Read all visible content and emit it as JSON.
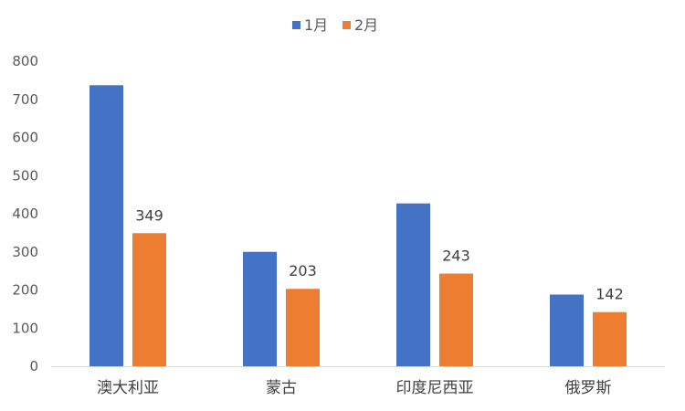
{
  "chart_data": {
    "type": "bar",
    "title": "",
    "xlabel": "",
    "ylabel": "",
    "categories": [
      "澳大利亚",
      "蒙古",
      "印度尼西亚",
      "俄罗斯"
    ],
    "ylim": [
      0,
      800
    ],
    "yticks": [
      0,
      100,
      200,
      300,
      400,
      500,
      600,
      700,
      800
    ],
    "grid": false,
    "legend_position": "top-center",
    "series": [
      {
        "name": "1月",
        "color": "#4472C4",
        "values": [
          737,
          300,
          427,
          188
        ],
        "show_labels": false
      },
      {
        "name": "2月",
        "color": "#ED7D31",
        "values": [
          349,
          203,
          243,
          142
        ],
        "show_labels": true
      }
    ]
  }
}
